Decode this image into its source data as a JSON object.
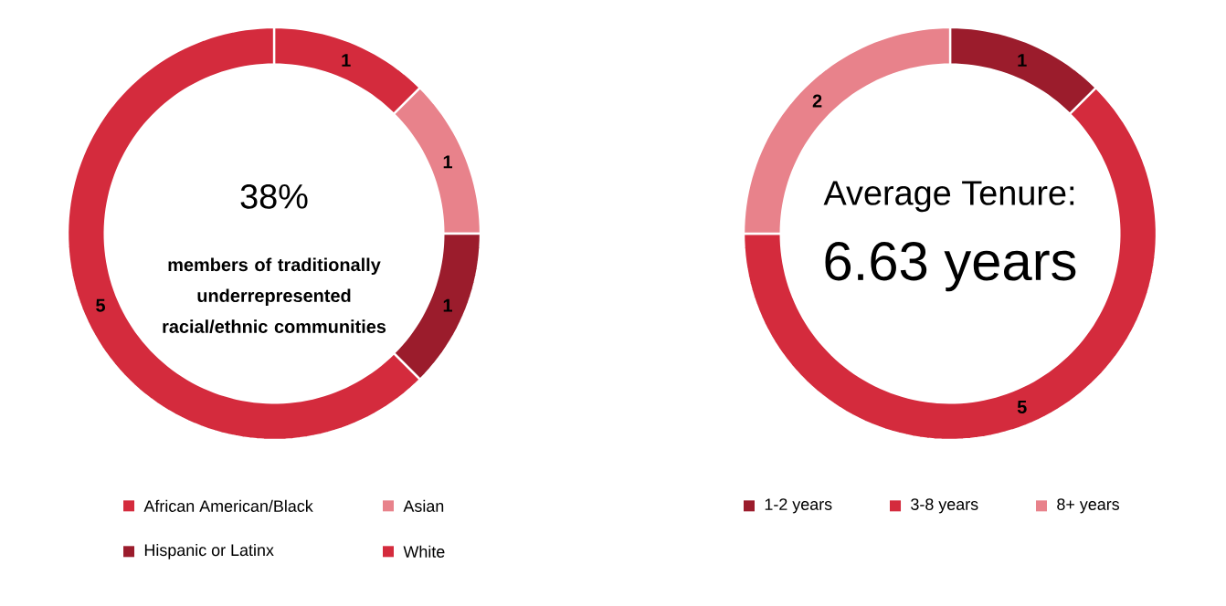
{
  "chart_data": [
    {
      "type": "donut",
      "categories": [
        "African American/Black",
        "Asian",
        "Hispanic or Latinx",
        "White"
      ],
      "values": [
        1,
        1,
        1,
        5
      ],
      "colors": [
        "#d42b3d",
        "#e8828b",
        "#9b1c2c",
        "#d42b3d"
      ],
      "data_labels": true,
      "legend": "bottom",
      "annotations": [
        "38%",
        "members of traditionally underrepresented racial/ethnic communities"
      ]
    },
    {
      "type": "donut",
      "categories": [
        "1-2 years",
        "3-8 years",
        "8+ years"
      ],
      "values": [
        1,
        5,
        2
      ],
      "colors": [
        "#9b1c2c",
        "#d42b3d",
        "#e8828b"
      ],
      "data_labels": true,
      "legend": "bottom",
      "annotations": [
        "Average Tenure:",
        "6.63 years"
      ]
    }
  ]
}
